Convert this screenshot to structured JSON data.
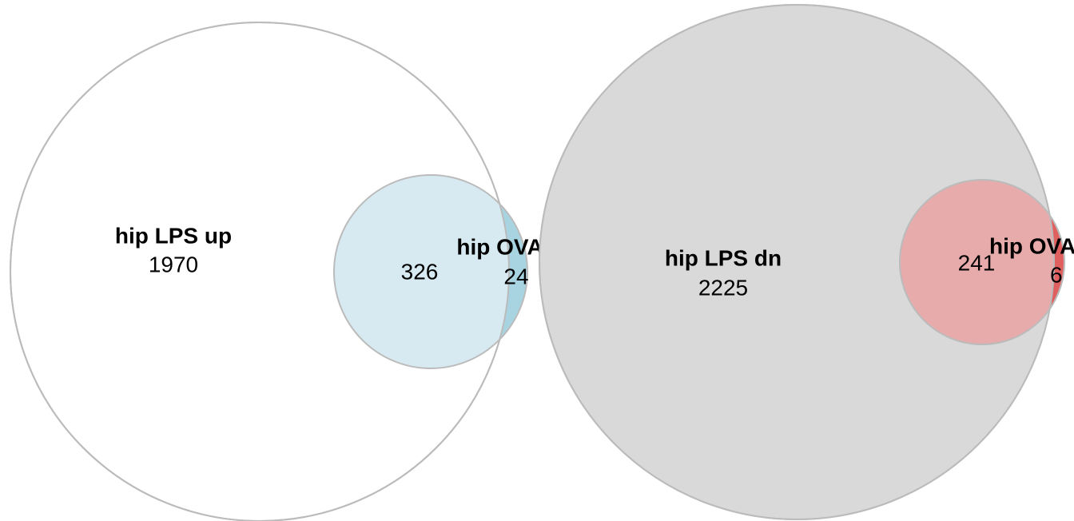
{
  "diagrams": [
    {
      "sets": [
        {
          "label": "hip LPS up",
          "only": "1970"
        },
        {
          "label": "hip OVA up",
          "only": "24"
        }
      ],
      "intersection": "326"
    },
    {
      "sets": [
        {
          "label": "hip LPS dn",
          "only": "2225"
        },
        {
          "label": "hip OVA dn",
          "only": "6"
        }
      ],
      "intersection": "241"
    }
  ]
}
